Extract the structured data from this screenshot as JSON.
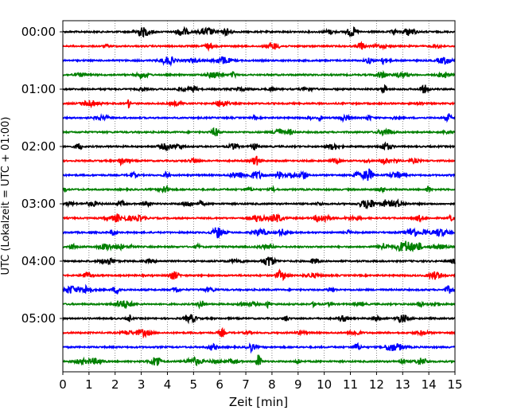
{
  "chart_data": {
    "type": "line",
    "title": "",
    "xlabel": "Zeit  [min]",
    "ylabel": "UTC (Lokalzeit = UTC + 01:00)",
    "xlim": [
      0,
      15
    ],
    "x_ticks": [
      0,
      1,
      2,
      3,
      4,
      5,
      6,
      7,
      8,
      9,
      10,
      11,
      12,
      13,
      14,
      15
    ],
    "x_tick_labels": [
      "0",
      "1",
      "2",
      "3",
      "4",
      "5",
      "6",
      "7",
      "8",
      "9",
      "10",
      "11",
      "12",
      "13",
      "14",
      "15"
    ],
    "y_tick_labels": [
      "00:00",
      "01:00",
      "02:00",
      "03:00",
      "04:00",
      "05:00"
    ],
    "trace_interval_min": 15,
    "trace_count": 24,
    "grid": "vertical dotted",
    "colors": [
      "#000000",
      "#ff0000",
      "#0000ff",
      "#008000"
    ],
    "traces": [
      {
        "start": "00:00",
        "color": "#000000"
      },
      {
        "start": "00:15",
        "color": "#ff0000"
      },
      {
        "start": "00:30",
        "color": "#0000ff"
      },
      {
        "start": "00:45",
        "color": "#008000"
      },
      {
        "start": "01:00",
        "color": "#000000"
      },
      {
        "start": "01:15",
        "color": "#ff0000"
      },
      {
        "start": "01:30",
        "color": "#0000ff"
      },
      {
        "start": "01:45",
        "color": "#008000"
      },
      {
        "start": "02:00",
        "color": "#000000"
      },
      {
        "start": "02:15",
        "color": "#ff0000"
      },
      {
        "start": "02:30",
        "color": "#0000ff"
      },
      {
        "start": "02:45",
        "color": "#008000"
      },
      {
        "start": "03:00",
        "color": "#000000"
      },
      {
        "start": "03:15",
        "color": "#ff0000"
      },
      {
        "start": "03:30",
        "color": "#0000ff"
      },
      {
        "start": "03:45",
        "color": "#008000"
      },
      {
        "start": "04:00",
        "color": "#000000"
      },
      {
        "start": "04:15",
        "color": "#ff0000"
      },
      {
        "start": "04:30",
        "color": "#0000ff"
      },
      {
        "start": "04:45",
        "color": "#008000"
      },
      {
        "start": "05:00",
        "color": "#000000"
      },
      {
        "start": "05:15",
        "color": "#ff0000"
      },
      {
        "start": "05:30",
        "color": "#0000ff"
      },
      {
        "start": "05:45",
        "color": "#008000"
      }
    ]
  }
}
